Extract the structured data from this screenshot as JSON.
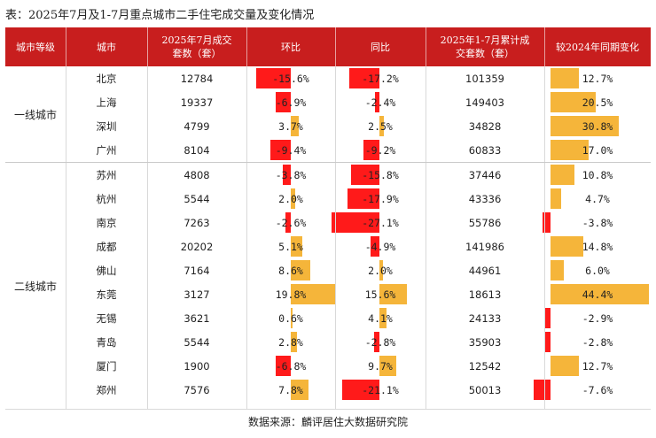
{
  "title": "表：2025年7月及1-7月重点城市二手住宅成交量及变化情况",
  "headers": {
    "tier": "城市等级",
    "city": "城市",
    "july": "2025年7月成交套数（套）",
    "mom": "环比",
    "yoy": "同比",
    "cum": "2025年1-7月累计成交套数（套）",
    "vs2024": "较2024年同期变化"
  },
  "tiers": [
    {
      "label": "一线城市"
    },
    {
      "label": "二线城市"
    }
  ],
  "rows": [
    {
      "city": "北京",
      "july": "12784",
      "mom": -15.6,
      "mom_label": "-15.6%",
      "yoy": -17.2,
      "yoy_label": "-17.2%",
      "cum": "101359",
      "chg": 12.7,
      "chg_label": "12.7%"
    },
    {
      "city": "上海",
      "july": "19337",
      "mom": -6.9,
      "mom_label": "-6.9%",
      "yoy": -2.4,
      "yoy_label": "-2.4%",
      "cum": "149403",
      "chg": 20.5,
      "chg_label": "20.5%"
    },
    {
      "city": "深圳",
      "july": "4799",
      "mom": 3.7,
      "mom_label": "3.7%",
      "yoy": 2.5,
      "yoy_label": "2.5%",
      "cum": "34828",
      "chg": 30.8,
      "chg_label": "30.8%"
    },
    {
      "city": "广州",
      "july": "8104",
      "mom": -9.4,
      "mom_label": "-9.4%",
      "yoy": -9.2,
      "yoy_label": "-9.2%",
      "cum": "60833",
      "chg": 17.0,
      "chg_label": "17.0%"
    },
    {
      "city": "苏州",
      "july": "4808",
      "mom": -3.8,
      "mom_label": "-3.8%",
      "yoy": -15.8,
      "yoy_label": "-15.8%",
      "cum": "37446",
      "chg": 10.8,
      "chg_label": "10.8%"
    },
    {
      "city": "杭州",
      "july": "5544",
      "mom": 2.0,
      "mom_label": "2.0%",
      "yoy": -17.9,
      "yoy_label": "-17.9%",
      "cum": "43336",
      "chg": 4.7,
      "chg_label": "4.7%"
    },
    {
      "city": "南京",
      "july": "7263",
      "mom": -2.6,
      "mom_label": "-2.6%",
      "yoy": -27.1,
      "yoy_label": "-27.1%",
      "cum": "55786",
      "chg": -3.8,
      "chg_label": "-3.8%"
    },
    {
      "city": "成都",
      "july": "20202",
      "mom": 5.1,
      "mom_label": "5.1%",
      "yoy": -4.9,
      "yoy_label": "-4.9%",
      "cum": "141986",
      "chg": 14.8,
      "chg_label": "14.8%"
    },
    {
      "city": "佛山",
      "july": "7164",
      "mom": 8.6,
      "mom_label": "8.6%",
      "yoy": 2.0,
      "yoy_label": "2.0%",
      "cum": "44961",
      "chg": 6.0,
      "chg_label": "6.0%"
    },
    {
      "city": "东莞",
      "july": "3127",
      "mom": 19.8,
      "mom_label": "19.8%",
      "yoy": 15.6,
      "yoy_label": "15.6%",
      "cum": "18613",
      "chg": 44.4,
      "chg_label": "44.4%"
    },
    {
      "city": "无锡",
      "july": "3621",
      "mom": 0.6,
      "mom_label": "0.6%",
      "yoy": 4.1,
      "yoy_label": "4.1%",
      "cum": "24133",
      "chg": -2.9,
      "chg_label": "-2.9%"
    },
    {
      "city": "青岛",
      "july": "5544",
      "mom": 2.8,
      "mom_label": "2.8%",
      "yoy": -2.8,
      "yoy_label": "-2.8%",
      "cum": "35903",
      "chg": -2.8,
      "chg_label": "-2.8%"
    },
    {
      "city": "厦门",
      "july": "1900",
      "mom": -6.8,
      "mom_label": "-6.8%",
      "yoy": 9.7,
      "yoy_label": "9.7%",
      "cum": "12542",
      "chg": 12.7,
      "chg_label": "12.7%"
    },
    {
      "city": "郑州",
      "july": "7576",
      "mom": 7.8,
      "mom_label": "7.8%",
      "yoy": -21.1,
      "yoy_label": "-21.1%",
      "cum": "50013",
      "chg": -7.6,
      "chg_label": "-7.6%"
    }
  ],
  "colors": {
    "header_bg": "#c81e1e",
    "positive": "#f5b53a",
    "negative": "#ff1a1a"
  },
  "source": "数据来源：麟评居住大数据研究院"
}
